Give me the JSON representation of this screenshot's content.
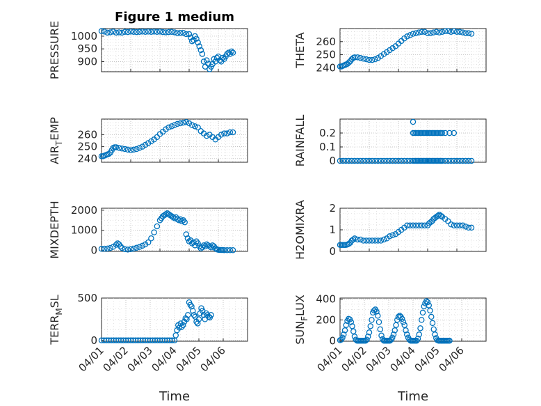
{
  "figure": {
    "title": "Figure 1 medium",
    "marker_color": "#0072BD",
    "xlabel": "Time"
  },
  "chart_data": [
    {
      "type": "scatter",
      "name": "pressure",
      "panel": 0,
      "ylabel": "PRESSURE",
      "ylabel_sub": "",
      "xlim": [
        0,
        5
      ],
      "ylim": [
        860,
        1030
      ],
      "yticks": [
        900,
        950,
        1000
      ],
      "x": [
        0.0,
        0.1,
        0.2,
        0.3,
        0.4,
        0.5,
        0.6,
        0.7,
        0.8,
        0.9,
        1.0,
        1.1,
        1.2,
        1.3,
        1.4,
        1.5,
        1.6,
        1.7,
        1.8,
        1.9,
        2.0,
        2.1,
        2.2,
        2.3,
        2.4,
        2.5,
        2.6,
        2.7,
        2.8,
        2.9,
        3.0,
        3.05,
        3.1,
        3.15,
        3.2,
        3.25,
        3.3,
        3.35,
        3.4,
        3.45,
        3.5,
        3.55,
        3.6,
        3.65,
        3.7,
        3.75,
        3.8,
        3.85,
        3.9,
        3.95,
        4.0,
        4.05,
        4.1,
        4.15,
        4.2,
        4.25,
        4.3,
        4.35,
        4.4,
        4.45,
        4.5
      ],
      "y": [
        1020,
        1018,
        1014,
        1015,
        1018,
        1014,
        1015,
        1014,
        1017,
        1016,
        1018,
        1017,
        1016,
        1017,
        1018,
        1017,
        1018,
        1017,
        1018,
        1017,
        1018,
        1016,
        1015,
        1016,
        1017,
        1015,
        1012,
        1013,
        1013,
        1008,
        1008,
        995,
        980,
        985,
        1000,
        990,
        975,
        960,
        945,
        930,
        900,
        880,
        905,
        892,
        870,
        880,
        890,
        910,
        900,
        915,
        920,
        905,
        900,
        915,
        910,
        920,
        930,
        935,
        930,
        940,
        935
      ]
    },
    {
      "type": "scatter",
      "name": "theta",
      "panel": 1,
      "ylabel": "THETA",
      "ylabel_sub": "",
      "xlim": [
        0,
        5
      ],
      "ylim": [
        237,
        270
      ],
      "yticks": [
        240,
        250,
        260
      ],
      "x": [
        0.0,
        0.05,
        0.1,
        0.15,
        0.2,
        0.25,
        0.3,
        0.35,
        0.4,
        0.45,
        0.5,
        0.6,
        0.7,
        0.8,
        0.9,
        1.0,
        1.1,
        1.2,
        1.3,
        1.4,
        1.5,
        1.6,
        1.7,
        1.8,
        1.9,
        2.0,
        2.1,
        2.2,
        2.3,
        2.4,
        2.5,
        2.6,
        2.7,
        2.8,
        2.9,
        3.0,
        3.1,
        3.2,
        3.3,
        3.4,
        3.5,
        3.6,
        3.7,
        3.8,
        3.9,
        4.0,
        4.1,
        4.2,
        4.3,
        4.4,
        4.5
      ],
      "y": [
        241,
        241,
        241.5,
        242,
        242.5,
        243,
        244,
        245,
        246.5,
        247.5,
        248,
        248,
        247.5,
        247,
        246.5,
        246,
        246,
        246.5,
        247.5,
        249,
        250.5,
        252,
        253.5,
        255,
        256.5,
        258.5,
        260.5,
        262.5,
        264,
        265,
        266,
        266.5,
        267,
        267.5,
        267.5,
        266.5,
        266.5,
        267,
        267.5,
        267,
        267.5,
        268,
        268,
        267.5,
        268,
        267.5,
        267.5,
        267,
        266.5,
        266.5,
        266
      ]
    },
    {
      "type": "scatter",
      "name": "air_temp",
      "panel": 2,
      "ylabel": "AIR",
      "ylabel_sub": "T",
      "ylabel_tail": "EMP",
      "xlim": [
        0,
        5
      ],
      "ylim": [
        237,
        273
      ],
      "yticks": [
        240,
        250,
        260
      ],
      "x": [
        0.0,
        0.05,
        0.1,
        0.15,
        0.2,
        0.25,
        0.3,
        0.35,
        0.4,
        0.45,
        0.5,
        0.6,
        0.7,
        0.8,
        0.9,
        1.0,
        1.1,
        1.2,
        1.3,
        1.4,
        1.5,
        1.6,
        1.7,
        1.8,
        1.9,
        2.0,
        2.1,
        2.2,
        2.3,
        2.4,
        2.5,
        2.6,
        2.7,
        2.8,
        2.9,
        3.0,
        3.1,
        3.2,
        3.3,
        3.4,
        3.5,
        3.6,
        3.7,
        3.8,
        3.9,
        4.0,
        4.1,
        4.2,
        4.3,
        4.4,
        4.5
      ],
      "y": [
        242,
        242,
        242.5,
        243,
        243.5,
        244,
        245,
        247,
        249,
        249.5,
        249.5,
        249,
        248.5,
        248,
        247.5,
        247,
        247.5,
        248,
        249,
        250,
        251.5,
        253,
        254.5,
        256,
        258,
        260.5,
        262.5,
        264.5,
        266,
        267,
        268,
        269,
        269.5,
        270,
        270.5,
        269.5,
        268,
        267,
        266,
        263,
        261,
        259,
        260,
        258,
        256,
        258,
        260,
        261,
        261,
        262,
        262
      ]
    },
    {
      "type": "scatter",
      "name": "rainfall",
      "panel": 3,
      "ylabel": "RAINFALL",
      "ylabel_sub": "",
      "xlim": [
        0,
        5
      ],
      "ylim": [
        -0.01,
        0.3
      ],
      "yticks": [
        0,
        0.1,
        0.2
      ],
      "ytick_labels": [
        "0",
        "0.1",
        "0.2"
      ],
      "x": [
        0.0,
        0.1,
        0.2,
        0.3,
        0.4,
        0.5,
        0.6,
        0.7,
        0.8,
        0.9,
        1.0,
        1.1,
        1.2,
        1.3,
        1.4,
        1.5,
        1.6,
        1.7,
        1.8,
        1.9,
        2.0,
        2.1,
        2.2,
        2.3,
        2.4,
        2.5,
        2.55,
        2.6,
        2.65,
        2.7,
        2.75,
        2.8,
        2.85,
        2.9,
        2.95,
        3.0,
        3.05,
        3.1,
        3.15,
        3.2,
        3.25,
        3.3,
        3.35,
        3.4,
        3.45,
        3.5,
        3.6,
        3.7,
        3.8,
        3.9,
        4.0,
        4.1,
        4.2,
        4.3,
        4.4,
        4.5,
        2.5,
        2.55,
        2.6,
        2.65,
        2.7,
        2.75,
        2.8,
        2.85,
        2.9,
        2.95,
        3.0,
        3.05,
        3.1,
        3.15,
        3.2,
        3.25,
        3.3,
        3.35,
        3.4,
        3.45,
        3.5,
        3.6,
        3.75,
        3.9,
        2.5
      ],
      "y": [
        0,
        0,
        0,
        0,
        0,
        0,
        0,
        0,
        0,
        0,
        0,
        0,
        0,
        0,
        0,
        0,
        0,
        0,
        0,
        0,
        0,
        0,
        0,
        0,
        0,
        0,
        0,
        0,
        0,
        0,
        0,
        0,
        0,
        0,
        0,
        0,
        0,
        0,
        0,
        0,
        0,
        0,
        0,
        0,
        0,
        0,
        0,
        0,
        0,
        0,
        0,
        0,
        0,
        0,
        0,
        0,
        0.2,
        0.2,
        0.2,
        0.2,
        0.2,
        0.2,
        0.2,
        0.2,
        0.2,
        0.2,
        0.2,
        0.2,
        0.2,
        0.2,
        0.2,
        0.2,
        0.2,
        0.2,
        0.2,
        0.2,
        0.2,
        0.2,
        0.2,
        0.2,
        0.28
      ]
    },
    {
      "type": "scatter",
      "name": "mixdepth",
      "panel": 4,
      "ylabel": "MIXDEPTH",
      "ylabel_sub": "",
      "xlim": [
        0,
        5
      ],
      "ylim": [
        -50,
        2100
      ],
      "yticks": [
        0,
        1000,
        2000
      ],
      "x": [
        0.0,
        0.1,
        0.2,
        0.3,
        0.4,
        0.5,
        0.55,
        0.6,
        0.65,
        0.7,
        0.8,
        0.9,
        1.0,
        1.1,
        1.2,
        1.3,
        1.4,
        1.5,
        1.6,
        1.7,
        1.8,
        1.9,
        2.0,
        2.05,
        2.1,
        2.15,
        2.2,
        2.25,
        2.3,
        2.35,
        2.4,
        2.45,
        2.5,
        2.55,
        2.6,
        2.65,
        2.7,
        2.75,
        2.8,
        2.85,
        2.9,
        2.95,
        3.0,
        3.05,
        3.1,
        3.15,
        3.2,
        3.25,
        3.3,
        3.35,
        3.4,
        3.45,
        3.5,
        3.55,
        3.6,
        3.65,
        3.7,
        3.75,
        3.8,
        3.85,
        3.9,
        3.95,
        4.0,
        4.05,
        4.1,
        4.15,
        4.2,
        4.3,
        4.4,
        4.5
      ],
      "y": [
        80,
        80,
        90,
        120,
        180,
        280,
        350,
        300,
        200,
        120,
        60,
        40,
        60,
        90,
        130,
        170,
        230,
        300,
        400,
        600,
        900,
        1200,
        1500,
        1600,
        1700,
        1750,
        1800,
        1850,
        1800,
        1750,
        1700,
        1650,
        1600,
        1650,
        1550,
        1500,
        1550,
        1450,
        1500,
        1400,
        800,
        600,
        450,
        500,
        350,
        400,
        250,
        450,
        350,
        200,
        100,
        150,
        250,
        200,
        300,
        250,
        200,
        150,
        250,
        200,
        100,
        50,
        30,
        20,
        20,
        20,
        10,
        10,
        10,
        10
      ]
    },
    {
      "type": "scatter",
      "name": "h2omixra",
      "panel": 5,
      "ylabel": "H2OMIXRA",
      "ylabel_sub": "",
      "xlim": [
        0,
        5
      ],
      "ylim": [
        0,
        2
      ],
      "yticks": [
        0,
        1,
        2
      ],
      "x": [
        0.0,
        0.05,
        0.1,
        0.15,
        0.2,
        0.25,
        0.3,
        0.35,
        0.4,
        0.45,
        0.5,
        0.6,
        0.7,
        0.8,
        0.9,
        1.0,
        1.1,
        1.2,
        1.3,
        1.4,
        1.5,
        1.6,
        1.7,
        1.8,
        1.9,
        2.0,
        2.1,
        2.2,
        2.3,
        2.4,
        2.5,
        2.6,
        2.7,
        2.8,
        2.9,
        3.0,
        3.05,
        3.1,
        3.15,
        3.2,
        3.25,
        3.3,
        3.35,
        3.4,
        3.45,
        3.5,
        3.6,
        3.7,
        3.8,
        3.9,
        4.0,
        4.1,
        4.2,
        4.3,
        4.4,
        4.5
      ],
      "y": [
        0.3,
        0.3,
        0.3,
        0.3,
        0.3,
        0.32,
        0.35,
        0.4,
        0.5,
        0.55,
        0.6,
        0.55,
        0.55,
        0.5,
        0.5,
        0.5,
        0.5,
        0.5,
        0.5,
        0.5,
        0.55,
        0.6,
        0.7,
        0.75,
        0.8,
        0.9,
        1.0,
        1.1,
        1.2,
        1.2,
        1.2,
        1.2,
        1.2,
        1.2,
        1.2,
        1.2,
        1.3,
        1.35,
        1.4,
        1.5,
        1.55,
        1.6,
        1.65,
        1.7,
        1.65,
        1.6,
        1.5,
        1.4,
        1.25,
        1.2,
        1.2,
        1.2,
        1.2,
        1.15,
        1.1,
        1.1
      ]
    },
    {
      "type": "scatter",
      "name": "terr_msl",
      "panel": 6,
      "ylabel": "TERR",
      "ylabel_sub": "M",
      "ylabel_tail": "SL",
      "xlim": [
        0,
        6
      ],
      "ylim": [
        -10,
        500
      ],
      "yticks": [
        0,
        500
      ],
      "x": [
        0.0,
        0.1,
        0.2,
        0.3,
        0.4,
        0.5,
        0.6,
        0.7,
        0.8,
        0.9,
        1.0,
        1.1,
        1.2,
        1.3,
        1.4,
        1.5,
        1.6,
        1.7,
        1.8,
        1.9,
        2.0,
        2.1,
        2.2,
        2.3,
        2.4,
        2.5,
        2.6,
        2.7,
        2.8,
        2.9,
        3.0,
        3.05,
        3.1,
        3.15,
        3.2,
        3.25,
        3.3,
        3.35,
        3.4,
        3.45,
        3.5,
        3.55,
        3.6,
        3.65,
        3.7,
        3.75,
        3.8,
        3.85,
        3.9,
        3.95,
        4.0,
        4.05,
        4.1,
        4.15,
        4.2,
        4.25,
        4.3,
        4.35,
        4.4,
        4.45,
        4.5
      ],
      "y": [
        0,
        0,
        0,
        0,
        0,
        0,
        0,
        0,
        0,
        0,
        0,
        0,
        0,
        0,
        0,
        0,
        0,
        0,
        0,
        0,
        0,
        0,
        0,
        0,
        0,
        0,
        0,
        0,
        0,
        0,
        0,
        60,
        120,
        180,
        150,
        200,
        160,
        180,
        220,
        260,
        250,
        300,
        450,
        420,
        400,
        350,
        300,
        280,
        220,
        200,
        250,
        320,
        380,
        350,
        300,
        250,
        320,
        300,
        280,
        270,
        300
      ]
    },
    {
      "type": "scatter",
      "name": "sun_flux",
      "panel": 7,
      "ylabel": "SUN",
      "ylabel_sub": "F",
      "ylabel_tail": "LUX",
      "xlim": [
        0,
        6
      ],
      "ylim": [
        -5,
        410
      ],
      "yticks": [
        0,
        200,
        400
      ],
      "x": [
        0.0,
        0.05,
        0.1,
        0.15,
        0.2,
        0.25,
        0.3,
        0.35,
        0.4,
        0.45,
        0.5,
        0.55,
        0.6,
        0.65,
        0.7,
        0.75,
        0.8,
        0.85,
        0.9,
        0.95,
        1.0,
        1.05,
        1.1,
        1.15,
        1.2,
        1.25,
        1.3,
        1.35,
        1.4,
        1.45,
        1.5,
        1.55,
        1.6,
        1.65,
        1.7,
        1.75,
        1.8,
        1.85,
        1.9,
        1.95,
        2.0,
        2.05,
        2.1,
        2.15,
        2.2,
        2.25,
        2.3,
        2.35,
        2.4,
        2.45,
        2.5,
        2.55,
        2.6,
        2.65,
        2.7,
        2.75,
        2.8,
        2.85,
        2.9,
        2.95,
        3.0,
        3.05,
        3.1,
        3.15,
        3.2,
        3.25,
        3.3,
        3.35,
        3.4,
        3.45,
        3.5,
        3.55,
        3.6,
        3.65,
        3.7,
        3.75,
        3.8,
        3.85,
        3.9,
        3.95,
        4.0,
        4.05,
        4.1,
        4.15,
        4.2,
        4.25,
        4.3,
        4.35,
        4.4,
        4.45,
        4.5
      ],
      "y": [
        5,
        10,
        30,
        60,
        100,
        150,
        190,
        210,
        205,
        180,
        140,
        90,
        40,
        10,
        0,
        0,
        0,
        0,
        0,
        0,
        0,
        0,
        10,
        40,
        80,
        140,
        200,
        270,
        290,
        300,
        280,
        240,
        180,
        110,
        50,
        15,
        0,
        0,
        0,
        0,
        0,
        0,
        10,
        30,
        60,
        100,
        150,
        200,
        230,
        240,
        230,
        210,
        180,
        150,
        100,
        60,
        30,
        10,
        0,
        0,
        0,
        0,
        0,
        0,
        20,
        60,
        120,
        200,
        270,
        330,
        360,
        380,
        370,
        340,
        290,
        230,
        170,
        110,
        60,
        25,
        5,
        0,
        0,
        0,
        0,
        0,
        0,
        0,
        0,
        0,
        0
      ]
    }
  ],
  "xaxis": {
    "ticks": [
      0,
      1,
      2,
      3,
      4,
      5
    ],
    "tick_labels": [
      "04/01",
      "04/02",
      "04/03",
      "04/04",
      "04/05",
      "04/06"
    ]
  }
}
